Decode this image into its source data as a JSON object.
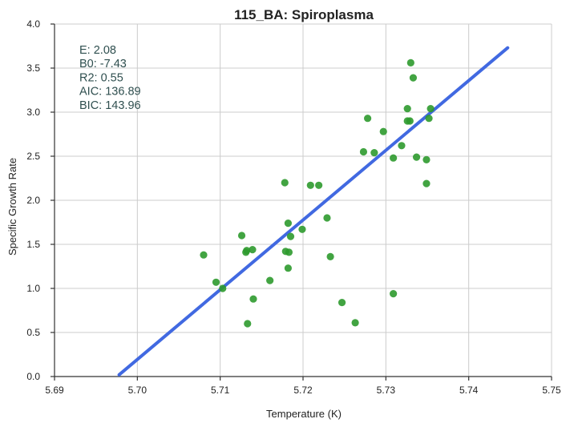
{
  "chart_data": {
    "type": "scatter",
    "title": "115_BA: Spiroplasma",
    "xlabel": "Temperature (K)",
    "ylabel": "Specific Growth Rate",
    "xlim": [
      5.69,
      5.75
    ],
    "ylim": [
      0.0,
      4.0
    ],
    "xticks": [
      "5.69",
      "5.70",
      "5.71",
      "5.72",
      "5.73",
      "5.74",
      "5.75"
    ],
    "yticks": [
      "0.0",
      "0.5",
      "1.0",
      "1.5",
      "2.0",
      "2.5",
      "3.0",
      "3.5",
      "4.0"
    ],
    "grid": true,
    "annotations": [
      "E:  2.08",
      "B0:  -7.43",
      "R2:  0.55",
      "AIC: 136.89",
      "BIC: 143.96"
    ],
    "points": [
      [
        5.708,
        1.38
      ],
      [
        5.7095,
        1.07
      ],
      [
        5.7103,
        1.0
      ],
      [
        5.7126,
        1.6
      ],
      [
        5.7131,
        1.41
      ],
      [
        5.7132,
        1.43
      ],
      [
        5.7139,
        1.44
      ],
      [
        5.714,
        0.88
      ],
      [
        5.7133,
        0.6
      ],
      [
        5.716,
        1.09
      ],
      [
        5.7178,
        2.2
      ],
      [
        5.7179,
        1.42
      ],
      [
        5.7183,
        1.41
      ],
      [
        5.7182,
        1.74
      ],
      [
        5.7185,
        1.59
      ],
      [
        5.7182,
        1.23
      ],
      [
        5.7199,
        1.67
      ],
      [
        5.7209,
        2.17
      ],
      [
        5.7219,
        2.17
      ],
      [
        5.7229,
        1.8
      ],
      [
        5.7233,
        1.36
      ],
      [
        5.7247,
        0.84
      ],
      [
        5.7263,
        0.61
      ],
      [
        5.7273,
        2.55
      ],
      [
        5.7278,
        2.93
      ],
      [
        5.7286,
        2.54
      ],
      [
        5.7297,
        2.78
      ],
      [
        5.7309,
        2.48
      ],
      [
        5.7309,
        0.94
      ],
      [
        5.7319,
        2.62
      ],
      [
        5.7326,
        3.04
      ],
      [
        5.7326,
        2.9
      ],
      [
        5.7329,
        2.9
      ],
      [
        5.733,
        3.56
      ],
      [
        5.7333,
        3.39
      ],
      [
        5.7337,
        2.49
      ],
      [
        5.7349,
        2.46
      ],
      [
        5.7349,
        2.19
      ],
      [
        5.7352,
        2.93
      ],
      [
        5.7354,
        3.04
      ]
    ],
    "fit_line": {
      "x": [
        5.6978,
        5.7447
      ],
      "y": [
        0.02,
        3.73
      ]
    },
    "colors": {
      "points": "#2e9a2e",
      "fit_line": "#4169e1"
    }
  }
}
